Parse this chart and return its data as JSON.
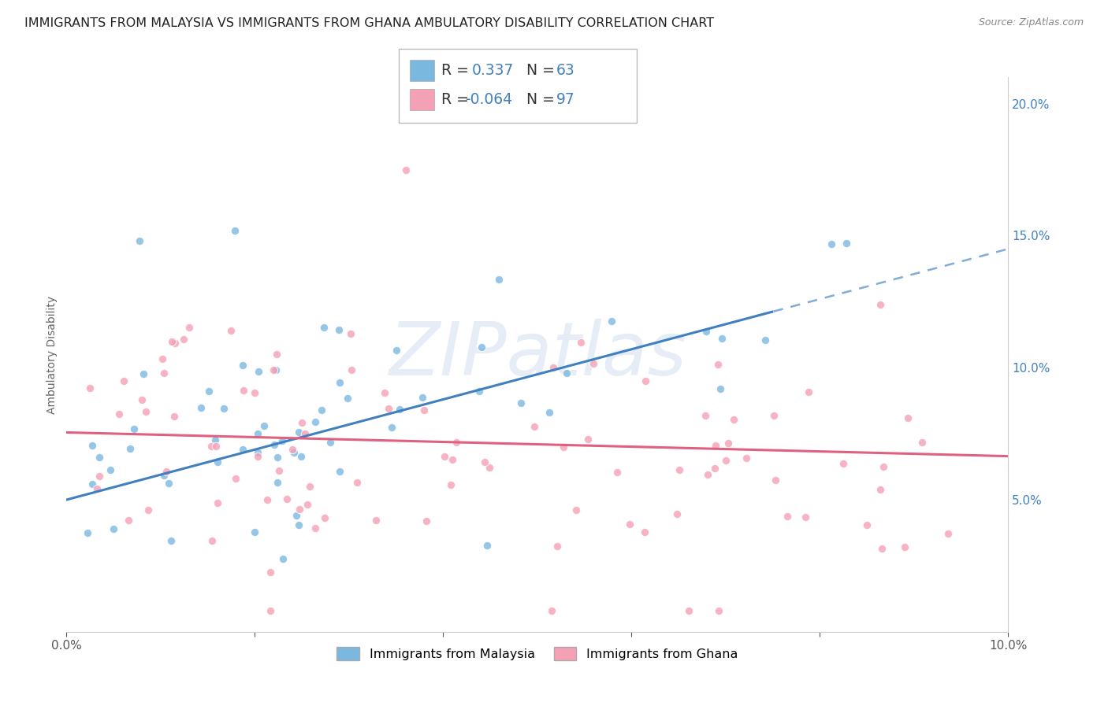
{
  "title": "IMMIGRANTS FROM MALAYSIA VS IMMIGRANTS FROM GHANA AMBULATORY DISABILITY CORRELATION CHART",
  "source": "Source: ZipAtlas.com",
  "ylabel": "Ambulatory Disability",
  "xmin": 0.0,
  "xmax": 0.1,
  "ymin": 0.0,
  "ymax": 0.21,
  "yticks": [
    0.05,
    0.1,
    0.15,
    0.2
  ],
  "ytick_labels": [
    "5.0%",
    "10.0%",
    "15.0%",
    "20.0%"
  ],
  "xticks": [
    0.0,
    0.02,
    0.04,
    0.06,
    0.08,
    0.1
  ],
  "xtick_labels": [
    "0.0%",
    "",
    "",
    "",
    "",
    "10.0%"
  ],
  "malaysia_color": "#7bb8e0",
  "ghana_color": "#f4a0b5",
  "malaysia_R": "0.337",
  "malaysia_N": "63",
  "ghana_R": "-0.064",
  "ghana_N": "97",
  "trend_blue_color": "#4080c0",
  "trend_pink_color": "#e06080",
  "background_color": "#ffffff",
  "grid_color": "#d0d0d0",
  "title_fontsize": 11.5,
  "axis_label_fontsize": 10,
  "tick_fontsize": 11,
  "right_tick_color": "#4080c0",
  "blue_value_color": "#4080c0",
  "watermark_text": "ZIPatlas",
  "legend_label_malaysia": "Immigrants from Malaysia",
  "legend_label_ghana": "Immigrants from Ghana",
  "blue_trend_solid_end": 0.075,
  "blue_trend_intercept": 0.05,
  "blue_trend_slope": 0.95,
  "pink_trend_intercept": 0.0755,
  "pink_trend_slope": -0.09
}
